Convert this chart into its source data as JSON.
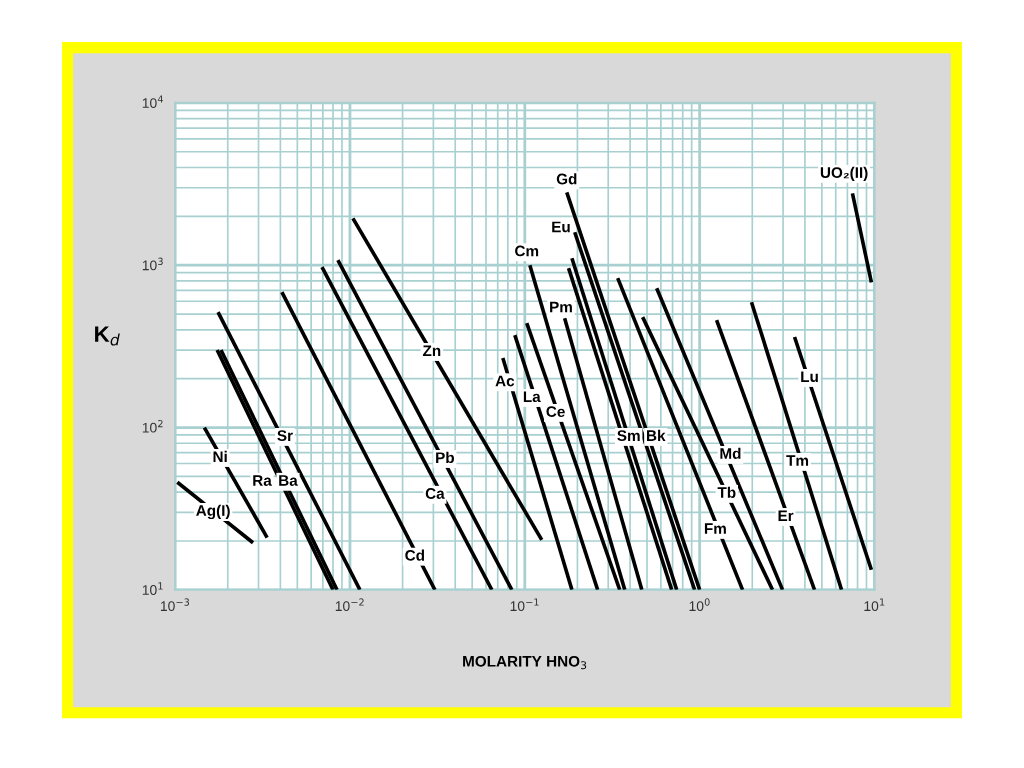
{
  "chart_data": {
    "type": "line",
    "xlabel": "MOLARITY HNO$_{3}$",
    "ylabel": "K$_{d}$",
    "log": "xy",
    "grid": true,
    "xlim": [
      0.001,
      10
    ],
    "ylim": [
      10,
      10000
    ],
    "xticks": [
      {
        "value": 0.001,
        "label": "10$^{−3}$"
      },
      {
        "value": 0.01,
        "label": "10$^{−2}$"
      },
      {
        "value": 0.1,
        "label": "10$^{−1}$"
      },
      {
        "value": 1,
        "label": "10$^{0}$"
      },
      {
        "value": 10,
        "label": "10$^{1}$"
      }
    ],
    "yticks": [
      {
        "value": 10,
        "label": "10$^{1}$"
      },
      {
        "value": 100,
        "label": "10$^{2}$"
      },
      {
        "value": 1000,
        "label": "10$^{3}$"
      },
      {
        "value": 10000,
        "label": "10$^{4}$"
      }
    ],
    "series": [
      {
        "color": "#000000",
        "x": [
          0.00103,
          0.00279
        ],
        "values": [
          46,
          19.5
        ]
      },
      {
        "color": "#000000",
        "x": [
          0.00147,
          0.00336
        ],
        "values": [
          100,
          21
        ]
      },
      {
        "color": "#000000",
        "x": [
          0.00174,
          0.008
        ],
        "values": [
          300,
          10
        ]
      },
      {
        "color": "#000000",
        "x": [
          0.00183,
          0.00843
        ],
        "values": [
          300,
          10
        ]
      },
      {
        "color": "#000000",
        "x": [
          0.00176,
          0.0114
        ],
        "values": [
          514,
          10
        ]
      },
      {
        "color": "#000000",
        "x": [
          0.00408,
          0.0306
        ],
        "values": [
          682,
          10
        ]
      },
      {
        "color": "#000000",
        "x": [
          0.00692,
          0.0648
        ],
        "values": [
          973,
          10
        ]
      },
      {
        "color": "#000000",
        "x": [
          0.00853,
          0.0843
        ],
        "values": [
          1075,
          10
        ]
      },
      {
        "color": "#000000",
        "x": [
          0.0104,
          0.125
        ],
        "values": [
          1945,
          20.3
        ]
      },
      {
        "color": "#000000",
        "x": [
          0.0749,
          0.186
        ],
        "values": [
          268,
          10
        ]
      },
      {
        "color": "#000000",
        "x": [
          0.0877,
          0.261
        ],
        "values": [
          371,
          10
        ]
      },
      {
        "color": "#000000",
        "x": [
          0.1026,
          0.349
        ],
        "values": [
          440,
          10
        ]
      },
      {
        "color": "#000000",
        "x": [
          0.1069,
          0.373
        ],
        "values": [
          1000,
          10
        ]
      },
      {
        "color": "#000000",
        "x": [
          0.169,
          0.467
        ],
        "values": [
          472,
          10
        ]
      },
      {
        "color": "#000000",
        "x": [
          0.1738,
          1.0
        ],
        "values": [
          2812,
          10
        ]
      },
      {
        "color": "#000000",
        "x": [
          0.193,
          0.936
        ],
        "values": [
          1596,
          10
        ]
      },
      {
        "color": "#000000",
        "x": [
          0.178,
          0.692
        ],
        "values": [
          960,
          10
        ]
      },
      {
        "color": "#000000",
        "x": [
          0.186,
          0.739
        ],
        "values": [
          1104,
          10
        ]
      },
      {
        "color": "#000000",
        "x": [
          0.34,
          1.76
        ],
        "values": [
          832,
          10
        ]
      },
      {
        "color": "#000000",
        "x": [
          0.472,
          2.61
        ],
        "values": [
          479,
          10
        ]
      },
      {
        "color": "#000000",
        "x": [
          0.568,
          2.98
        ],
        "values": [
          721,
          10
        ]
      },
      {
        "color": "#000000",
        "x": [
          1.25,
          4.54
        ],
        "values": [
          459,
          10
        ]
      },
      {
        "color": "#000000",
        "x": [
          1.98,
          6.48
        ],
        "values": [
          592,
          10
        ]
      },
      {
        "color": "#000000",
        "x": [
          3.49,
          9.6
        ],
        "values": [
          361,
          13.3
        ]
      },
      {
        "color": "#000000",
        "x": [
          7.48,
          9.6
        ],
        "values": [
          2773,
          785
        ]
      }
    ],
    "annotations": [
      {
        "text": "Ag(I)",
        "x": 0.00165,
        "y": 30.2
      },
      {
        "text": "Ni",
        "x": 0.00181,
        "y": 64.9
      },
      {
        "text": "Ra",
        "x": 0.00314,
        "y": 46.3
      },
      {
        "text": "Ba",
        "x": 0.00442,
        "y": 46.3
      },
      {
        "text": "Sr",
        "x": 0.00425,
        "y": 87.5
      },
      {
        "text": "Cd",
        "x": 0.0235,
        "y": 16
      },
      {
        "text": "Ca",
        "x": 0.0306,
        "y": 38.5
      },
      {
        "text": "Pb",
        "x": 0.0349,
        "y": 64
      },
      {
        "text": "Zn",
        "x": 0.0294,
        "y": 292
      },
      {
        "text": "Ac",
        "x": 0.0769,
        "y": 190
      },
      {
        "text": "La",
        "x": 0.1096,
        "y": 152
      },
      {
        "text": "Ce",
        "x": 0.15,
        "y": 123
      },
      {
        "text": "Cm",
        "x": 0.1026,
        "y": 1202
      },
      {
        "text": "Pm",
        "x": 0.161,
        "y": 543
      },
      {
        "text": "Gd",
        "x": 0.1738,
        "y": 3335
      },
      {
        "text": "Eu",
        "x": 0.161,
        "y": 1690
      },
      {
        "text": "Sm",
        "x": 0.393,
        "y": 87.5
      },
      {
        "text": "Bk",
        "x": 0.561,
        "y": 87.5
      },
      {
        "text": "Md",
        "x": 1.5,
        "y": 67.8
      },
      {
        "text": "Tb",
        "x": 1.43,
        "y": 39
      },
      {
        "text": "Fm",
        "x": 1.23,
        "y": 23.4
      },
      {
        "text": "Er",
        "x": 3.1,
        "y": 28.1
      },
      {
        "text": "Tm",
        "x": 3.63,
        "y": 61.4
      },
      {
        "text": "Lu",
        "x": 4.25,
        "y": 202
      },
      {
        "text": "UO₂(II)",
        "x": 7.48,
        "y": 2773
      }
    ]
  }
}
